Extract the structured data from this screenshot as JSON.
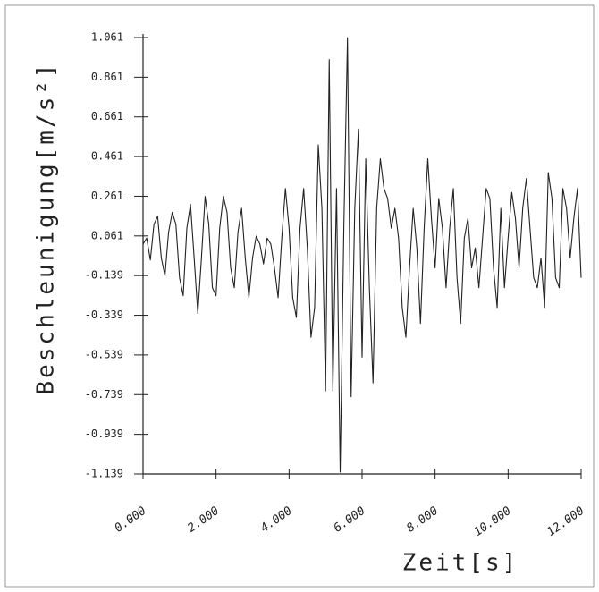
{
  "chart_data": {
    "type": "line",
    "x_label": "Zeit[s]",
    "y_label": "Beschleunigung[m/s²]",
    "x": [
      0,
      0.1,
      0.2,
      0.3,
      0.4,
      0.5,
      0.6,
      0.7,
      0.8,
      0.9,
      1,
      1.1,
      1.2,
      1.3,
      1.4,
      1.5,
      1.6,
      1.7,
      1.8,
      1.9,
      2,
      2.1,
      2.2,
      2.3,
      2.4,
      2.5,
      2.6,
      2.7,
      2.8,
      2.9,
      3,
      3.1,
      3.2,
      3.3,
      3.4,
      3.5,
      3.6,
      3.7,
      3.8,
      3.9,
      4,
      4.1,
      4.2,
      4.3,
      4.4,
      4.5,
      4.6,
      4.7,
      4.8,
      4.9,
      5,
      5.1,
      5.2,
      5.3,
      5.4,
      5.5,
      5.6,
      5.7,
      5.8,
      5.9,
      6,
      6.1,
      6.2,
      6.3,
      6.4,
      6.5,
      6.6,
      6.7,
      6.8,
      6.9,
      7,
      7.1,
      7.2,
      7.3,
      7.4,
      7.5,
      7.6,
      7.7,
      7.8,
      7.9,
      8,
      8.1,
      8.2,
      8.3,
      8.4,
      8.5,
      8.6,
      8.7,
      8.8,
      8.9,
      9,
      9.1,
      9.2,
      9.3,
      9.4,
      9.5,
      9.6,
      9.7,
      9.8,
      9.9,
      10,
      10.1,
      10.2,
      10.3,
      10.4,
      10.5,
      10.6,
      10.7,
      10.8,
      10.9,
      11,
      11.1,
      11.2,
      11.3,
      11.4,
      11.5,
      11.6,
      11.7,
      11.8,
      11.9,
      12
    ],
    "series": [
      {
        "color": "#222222",
        "values": [
          0.02,
          0.05,
          -0.06,
          0.12,
          0.16,
          -0.05,
          -0.14,
          0.08,
          0.18,
          0.12,
          -0.15,
          -0.24,
          0.1,
          0.22,
          -0.05,
          -0.33,
          -0.05,
          0.26,
          0.12,
          -0.2,
          -0.24,
          0.1,
          0.26,
          0.18,
          -0.1,
          -0.2,
          0.08,
          0.2,
          -0.05,
          -0.25,
          -0.05,
          0.06,
          0.02,
          -0.08,
          0.05,
          0.02,
          -0.1,
          -0.25,
          0.05,
          0.3,
          0.1,
          -0.25,
          -0.35,
          0.1,
          0.3,
          0.0,
          -0.45,
          -0.3,
          0.52,
          0.2,
          -0.72,
          0.95,
          -0.72,
          0.3,
          -1.13,
          0.1,
          1.06,
          -0.75,
          0.2,
          0.6,
          -0.55,
          0.45,
          -0.2,
          -0.68,
          0.2,
          0.45,
          0.3,
          0.25,
          0.1,
          0.2,
          0.05,
          -0.3,
          -0.45,
          -0.1,
          0.2,
          0.0,
          -0.38,
          0.1,
          0.45,
          0.15,
          -0.1,
          0.25,
          0.1,
          -0.2,
          0.1,
          0.3,
          -0.15,
          -0.38,
          0.05,
          0.15,
          -0.1,
          0.0,
          -0.2,
          0.05,
          0.3,
          0.25,
          -0.1,
          -0.3,
          0.2,
          -0.2,
          0.05,
          0.28,
          0.15,
          -0.1,
          0.2,
          0.35,
          0.1,
          -0.15,
          -0.2,
          -0.05,
          -0.3,
          0.38,
          0.25,
          -0.15,
          -0.2,
          0.3,
          0.2,
          -0.05,
          0.15,
          0.3,
          -0.15
        ]
      }
    ],
    "xlim": [
      0,
      12
    ],
    "xticks": [
      {
        "value": 0,
        "label": "0.000"
      },
      {
        "value": 2,
        "label": "2.000"
      },
      {
        "value": 4,
        "label": "4.000"
      },
      {
        "value": 6,
        "label": "6.000"
      },
      {
        "value": 8,
        "label": "8.000"
      },
      {
        "value": 10,
        "label": "10.000"
      },
      {
        "value": 12,
        "label": "12.000"
      }
    ],
    "ylim": [
      -1.139,
      1.061
    ],
    "yticks": [
      -1.139,
      -0.939,
      -0.739,
      -0.539,
      -0.339,
      -0.139,
      0.061,
      0.261,
      0.461,
      0.661,
      0.861,
      1.061
    ],
    "grid": false
  }
}
